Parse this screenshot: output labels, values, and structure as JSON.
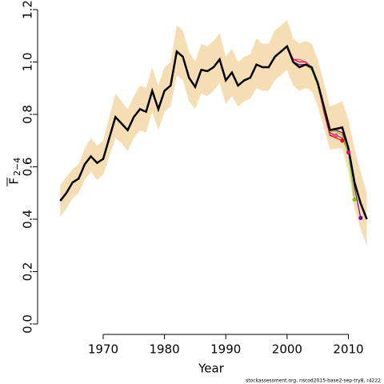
{
  "chart_data": {
    "type": "line",
    "xlabel": "Year",
    "ylabel": "F",
    "ylabel_sub": "2−4",
    "footnote": "stockassessment.org, nscod2015-base2-sep-try8, r4222",
    "xlim": [
      1961,
      2014.5
    ],
    "ylim": [
      0,
      1.2
    ],
    "xticks": [
      1970,
      1980,
      1990,
      2000,
      2010
    ],
    "yticks": [
      {
        "value": 0,
        "label": "0.0"
      },
      0.2,
      0.4,
      0.6,
      0.8,
      {
        "value": 1,
        "label": "1.0"
      },
      1.2
    ],
    "x": [
      1963,
      1964,
      1965,
      1966,
      1967,
      1968,
      1969,
      1970,
      1971,
      1972,
      1973,
      1974,
      1975,
      1976,
      1977,
      1978,
      1979,
      1980,
      1981,
      1982,
      1983,
      1984,
      1985,
      1986,
      1987,
      1988,
      1989,
      1990,
      1991,
      1992,
      1993,
      1994,
      1995,
      1996,
      1997,
      1998,
      1999,
      2000,
      2001,
      2002,
      2003,
      2004,
      2005,
      2006,
      2007,
      2008,
      2009,
      2010,
      2011,
      2012,
      2013
    ],
    "band": {
      "color": "#f5deb3",
      "upper": [
        0.53,
        0.56,
        0.59,
        0.61,
        0.67,
        0.71,
        0.68,
        0.7,
        0.79,
        0.88,
        0.85,
        0.82,
        0.87,
        0.91,
        0.9,
        0.98,
        0.91,
        0.98,
        1.0,
        1.14,
        1.12,
        1.04,
        1.0,
        1.07,
        1.06,
        1.08,
        1.11,
        1.02,
        1.05,
        1.0,
        1.02,
        1.03,
        1.09,
        1.07,
        1.07,
        1.12,
        1.14,
        1.16,
        1.09,
        1.07,
        1.08,
        1.07,
        1.01,
        0.92,
        0.83,
        0.84,
        0.85,
        0.78,
        0.67,
        0.58,
        0.5
      ],
      "lower": [
        0.41,
        0.44,
        0.48,
        0.5,
        0.55,
        0.58,
        0.55,
        0.57,
        0.64,
        0.71,
        0.69,
        0.66,
        0.71,
        0.74,
        0.73,
        0.81,
        0.74,
        0.81,
        0.83,
        0.95,
        0.93,
        0.85,
        0.82,
        0.88,
        0.87,
        0.89,
        0.92,
        0.84,
        0.87,
        0.83,
        0.85,
        0.86,
        0.9,
        0.89,
        0.89,
        0.93,
        0.95,
        0.97,
        0.91,
        0.89,
        0.9,
        0.89,
        0.83,
        0.75,
        0.665,
        0.67,
        0.67,
        0.58,
        0.44,
        0.36,
        0.3
      ]
    },
    "series": [
      {
        "color": "#000000",
        "values": [
          0.47,
          0.5,
          0.54,
          0.555,
          0.61,
          0.64,
          0.615,
          0.63,
          0.71,
          0.79,
          0.765,
          0.74,
          0.79,
          0.82,
          0.81,
          0.89,
          0.82,
          0.89,
          0.91,
          1.04,
          1.02,
          0.94,
          0.905,
          0.97,
          0.965,
          0.98,
          1.01,
          0.93,
          0.96,
          0.91,
          0.93,
          0.94,
          0.99,
          0.98,
          0.98,
          1.02,
          1.04,
          1.06,
          1.0,
          0.98,
          0.99,
          0.98,
          0.92,
          0.83,
          0.74,
          0.745,
          0.75,
          0.67,
          0.54,
          0.46,
          0.4
        ]
      }
    ],
    "retro": [
      {
        "color": "#e0508c",
        "x": [
          2000,
          2001,
          2002,
          2003,
          2004,
          2005,
          2006,
          2007,
          2008
        ],
        "values": [
          1.06,
          1.01,
          1.01,
          1.0,
          0.98,
          0.91,
          0.81,
          0.72,
          0.72
        ]
      },
      {
        "color": "#ff0000",
        "x": [
          2000,
          2001,
          2002,
          2003,
          2004,
          2005,
          2006,
          2007,
          2008,
          2009
        ],
        "values": [
          1.06,
          1.01,
          1.0,
          1.0,
          0.98,
          0.92,
          0.81,
          0.72,
          0.71,
          0.7
        ]
      },
      {
        "color": "#e6007e",
        "x": [
          2000,
          2001,
          2002,
          2003,
          2004,
          2005,
          2006,
          2007,
          2008,
          2009,
          2010
        ],
        "values": [
          1.06,
          1.01,
          1.0,
          1.0,
          0.98,
          0.92,
          0.82,
          0.73,
          0.72,
          0.71,
          0.655
        ]
      },
      {
        "color": "#7ccd00",
        "x": [
          2000,
          2001,
          2002,
          2003,
          2004,
          2005,
          2006,
          2007,
          2008,
          2009,
          2010,
          2011
        ],
        "values": [
          1.05,
          1.0,
          0.98,
          0.99,
          0.97,
          0.91,
          0.82,
          0.735,
          0.735,
          0.72,
          0.65,
          0.475
        ]
      },
      {
        "color": "#8000a0",
        "x": [
          2000,
          2001,
          2002,
          2003,
          2004,
          2005,
          2006,
          2007,
          2008,
          2009,
          2010,
          2011,
          2012
        ],
        "values": [
          1.06,
          1.0,
          0.99,
          0.99,
          0.98,
          0.92,
          0.83,
          0.74,
          0.74,
          0.73,
          0.67,
          0.52,
          0.405
        ]
      }
    ]
  }
}
